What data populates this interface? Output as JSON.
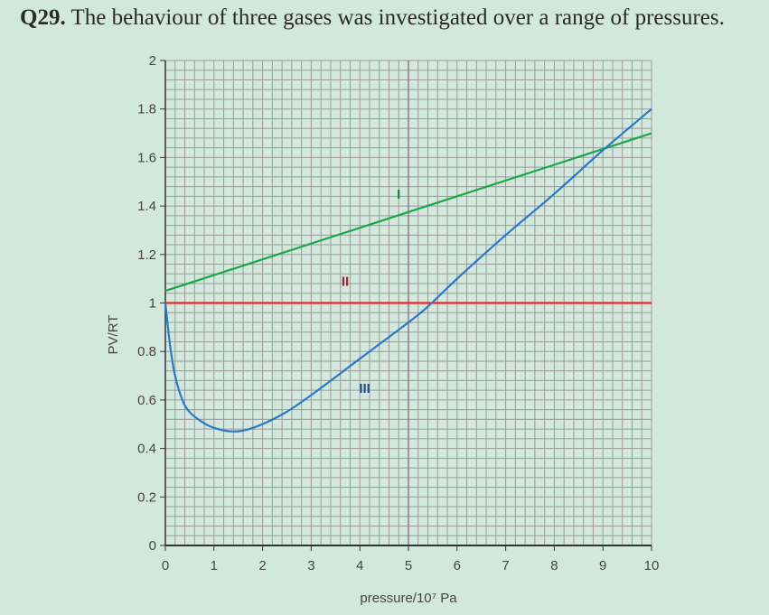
{
  "question": {
    "number": "Q29.",
    "text": "The behaviour of three gases was investigated over a range of pressures."
  },
  "chart_data": {
    "type": "line",
    "xlabel": "pressure/10⁷ Pa",
    "ylabel": "PV/RT",
    "xlim": [
      0,
      10
    ],
    "ylim": [
      0,
      2
    ],
    "xticks": [
      "0",
      "1",
      "2",
      "3",
      "4",
      "5",
      "6",
      "7",
      "8",
      "9",
      "10"
    ],
    "yticks": [
      "0",
      "0.2",
      "0.4",
      "0.6",
      "0.8",
      "1",
      "1.2",
      "1.4",
      "1.6",
      "1.8",
      "2"
    ],
    "grid": true,
    "series": [
      {
        "name": "I",
        "color": "#1aa64a",
        "label_color": "#1a7a3a",
        "label_at": [
          4.8,
          1.43
        ],
        "x": [
          0,
          10
        ],
        "y": [
          1.05,
          1.7
        ]
      },
      {
        "name": "II",
        "color": "#e8282c",
        "label_color": "#a8203a",
        "label_at": [
          3.7,
          1.07
        ],
        "x": [
          0,
          10
        ],
        "y": [
          1.0,
          1.0
        ]
      },
      {
        "name": "III",
        "color": "#2a78c8",
        "label_color": "#1f4f8a",
        "label_at": [
          4.1,
          0.63
        ],
        "x": [
          0,
          0.1,
          0.2,
          0.35,
          0.5,
          0.75,
          1.0,
          1.4,
          1.8,
          2.4,
          3,
          4,
          5,
          5.4,
          6,
          7,
          8,
          9,
          10
        ],
        "y": [
          1.0,
          0.82,
          0.7,
          0.6,
          0.55,
          0.51,
          0.485,
          0.47,
          0.485,
          0.54,
          0.62,
          0.77,
          0.92,
          0.985,
          1.1,
          1.28,
          1.45,
          1.63,
          1.8
        ]
      }
    ]
  }
}
